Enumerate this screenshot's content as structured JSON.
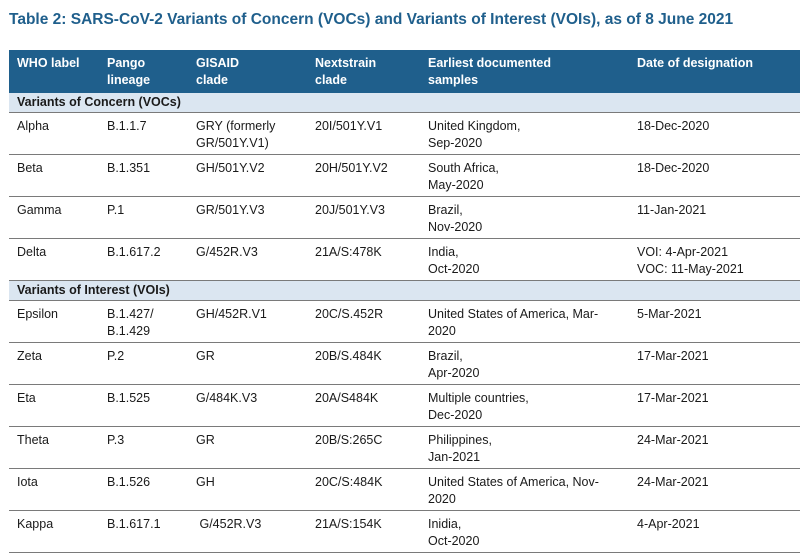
{
  "title": "Table 2: SARS-CoV-2 Variants of Concern (VOCs) and Variants of Interest (VOIs), as of 8 June 2021",
  "columns": [
    "WHO label",
    "Pango\nlineage",
    "GISAID\nclade",
    "Nextstrain\nclade",
    "Earliest documented\nsamples",
    "Date of designation"
  ],
  "groups": {
    "voc": "Variants of Concern (VOCs)",
    "voi": "Variants of Interest (VOIs)"
  },
  "voc_rows": [
    [
      "Alpha",
      "B.1.1.7",
      "GRY (formerly\nGR/501Y.V1)",
      "20I/501Y.V1",
      "United Kingdom,\nSep-2020",
      "18-Dec-2020"
    ],
    [
      "Beta",
      "B.1.351",
      "GH/501Y.V2",
      "20H/501Y.V2",
      "South Africa,\nMay-2020",
      "18-Dec-2020"
    ],
    [
      "Gamma",
      "P.1",
      "GR/501Y.V3",
      "20J/501Y.V3",
      "Brazil,\nNov-2020",
      "11-Jan-2021"
    ],
    [
      "Delta",
      "B.1.617.2",
      "G/452R.V3",
      "21A/S:478K",
      "India,\nOct-2020",
      "VOI: 4-Apr-2021\nVOC: 11-May-2021"
    ]
  ],
  "voi_rows": [
    [
      "Epsilon",
      "B.1.427/\nB.1.429",
      "GH/452R.V1",
      "20C/S.452R",
      "United States of America, Mar-\n2020",
      "5-Mar-2021"
    ],
    [
      "Zeta",
      "P.2",
      "GR",
      "20B/S.484K",
      "Brazil,\nApr-2020",
      "17-Mar-2021"
    ],
    [
      "Eta",
      "B.1.525",
      "G/484K.V3",
      "20A/S484K",
      "Multiple countries,\nDec-2020",
      "17-Mar-2021"
    ],
    [
      "Theta",
      "P.3",
      "GR",
      "20B/S:265C",
      "Philippines,\nJan-2021",
      "24-Mar-2021"
    ],
    [
      "Iota",
      "B.1.526",
      "GH",
      "20C/S:484K",
      "United States of America, Nov-\n2020",
      "24-Mar-2021"
    ],
    [
      "Kappa",
      "B.1.617.1",
      " G/452R.V3",
      "21A/S:154K",
      "Inidia,\nOct-2020",
      "4-Apr-2021"
    ]
  ]
}
